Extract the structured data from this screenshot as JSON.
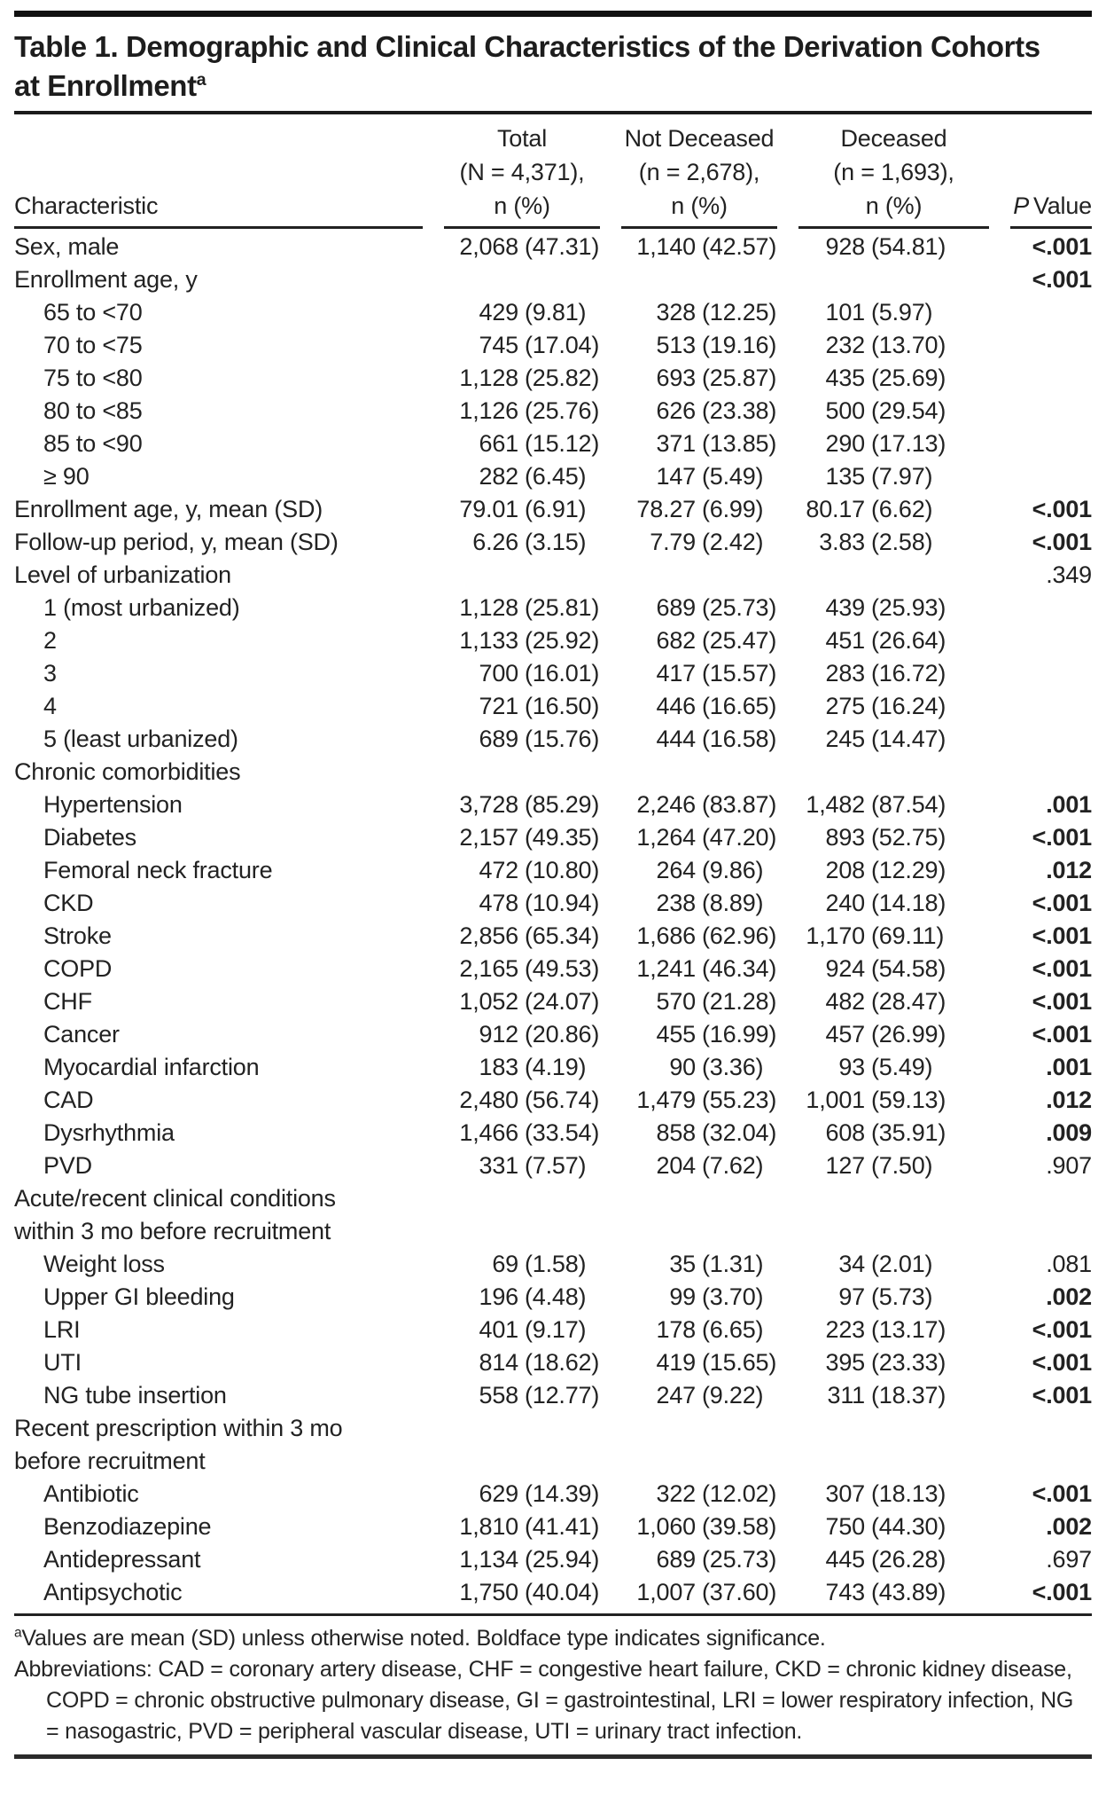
{
  "table": {
    "title_line1": "Table 1. Demographic and Clinical Characteristics of the Derivation Cohorts",
    "title_line2": "at Enrollment",
    "title_sup": "a",
    "header": {
      "characteristic": "Characteristic",
      "columns": [
        {
          "line1": "Total",
          "line2": "(N = 4,371),",
          "line3": "n (%)"
        },
        {
          "line1": "Not Deceased",
          "line2": "(n = 2,678),",
          "line3": "n (%)"
        },
        {
          "line1": "Deceased",
          "line2": "(n = 1,693),",
          "line3": "n (%)"
        }
      ],
      "p_italic": "P",
      "p_rest": "Value"
    },
    "rows": [
      {
        "label": "Sex, male",
        "total": "2,068 (47.31)",
        "nd": "1,140 (42.57)",
        "d": "928 (54.81)",
        "p": "<.001",
        "pb": true
      },
      {
        "label": "Enrollment age, y",
        "p": "<.001",
        "pb": true
      },
      {
        "label": "65 to <70",
        "ind": true,
        "total": "429 (9.81)",
        "nd": "328 (12.25)",
        "d": "101 (5.97)"
      },
      {
        "label": "70 to <75",
        "ind": true,
        "total": "745 (17.04)",
        "nd": "513 (19.16)",
        "d": "232 (13.70)"
      },
      {
        "label": "75 to <80",
        "ind": true,
        "total": "1,128 (25.82)",
        "nd": "693 (25.87)",
        "d": "435 (25.69)"
      },
      {
        "label": "80 to <85",
        "ind": true,
        "total": "1,126 (25.76)",
        "nd": "626 (23.38)",
        "d": "500 (29.54)"
      },
      {
        "label": "85 to <90",
        "ind": true,
        "total": "661 (15.12)",
        "nd": "371 (13.85)",
        "d": "290 (17.13)"
      },
      {
        "label": "≥ 90",
        "ind": true,
        "total": "282 (6.45)",
        "nd": "147 (5.49)",
        "d": "135 (7.97)"
      },
      {
        "label": "Enrollment age, y, mean (SD)",
        "total": "79.01 (6.91)",
        "nd": "78.27 (6.99)",
        "d": "80.17 (6.62)",
        "p": "<.001",
        "pb": true
      },
      {
        "label": "Follow-up period, y, mean (SD)",
        "total": "6.26 (3.15)",
        "nd": "7.79 (2.42)",
        "d": "3.83 (2.58)",
        "p": "<.001",
        "pb": true
      },
      {
        "label": "Level of urbanization",
        "p": ".349",
        "pb": false
      },
      {
        "label": "1 (most urbanized)",
        "ind": true,
        "total": "1,128 (25.81)",
        "nd": "689 (25.73)",
        "d": "439 (25.93)"
      },
      {
        "label": "2",
        "ind": true,
        "total": "1,133 (25.92)",
        "nd": "682 (25.47)",
        "d": "451 (26.64)"
      },
      {
        "label": "3",
        "ind": true,
        "total": "700 (16.01)",
        "nd": "417 (15.57)",
        "d": "283 (16.72)"
      },
      {
        "label": "4",
        "ind": true,
        "total": "721 (16.50)",
        "nd": "446 (16.65)",
        "d": "275 (16.24)"
      },
      {
        "label": "5 (least urbanized)",
        "ind": true,
        "total": "689 (15.76)",
        "nd": "444 (16.58)",
        "d": "245 (14.47)"
      },
      {
        "label": "Chronic comorbidities"
      },
      {
        "label": "Hypertension",
        "ind": true,
        "total": "3,728 (85.29)",
        "nd": "2,246 (83.87)",
        "d": "1,482 (87.54)",
        "p": ".001",
        "pb": true
      },
      {
        "label": "Diabetes",
        "ind": true,
        "total": "2,157 (49.35)",
        "nd": "1,264 (47.20)",
        "d": "893 (52.75)",
        "p": "<.001",
        "pb": true
      },
      {
        "label": "Femoral neck fracture",
        "ind": true,
        "total": "472 (10.80)",
        "nd": "264 (9.86)",
        "d": "208 (12.29)",
        "p": ".012",
        "pb": true
      },
      {
        "label": "CKD",
        "ind": true,
        "total": "478 (10.94)",
        "nd": "238 (8.89)",
        "d": "240 (14.18)",
        "p": "<.001",
        "pb": true
      },
      {
        "label": "Stroke",
        "ind": true,
        "total": "2,856 (65.34)",
        "nd": "1,686 (62.96)",
        "d": "1,170 (69.11)",
        "p": "<.001",
        "pb": true
      },
      {
        "label": "COPD",
        "ind": true,
        "total": "2,165 (49.53)",
        "nd": "1,241 (46.34)",
        "d": "924 (54.58)",
        "p": "<.001",
        "pb": true
      },
      {
        "label": "CHF",
        "ind": true,
        "total": "1,052 (24.07)",
        "nd": "570 (21.28)",
        "d": "482 (28.47)",
        "p": "<.001",
        "pb": true
      },
      {
        "label": "Cancer",
        "ind": true,
        "total": "912 (20.86)",
        "nd": "455 (16.99)",
        "d": "457 (26.99)",
        "p": "<.001",
        "pb": true
      },
      {
        "label": "Myocardial infarction",
        "ind": true,
        "total": "183 (4.19)",
        "nd": "90 (3.36)",
        "d": "93 (5.49)",
        "p": ".001",
        "pb": true
      },
      {
        "label": "CAD",
        "ind": true,
        "total": "2,480 (56.74)",
        "nd": "1,479 (55.23)",
        "d": "1,001 (59.13)",
        "p": ".012",
        "pb": true
      },
      {
        "label": "Dysrhythmia",
        "ind": true,
        "total": "1,466 (33.54)",
        "nd": "858 (32.04)",
        "d": "608 (35.91)",
        "p": ".009",
        "pb": true
      },
      {
        "label": "PVD",
        "ind": true,
        "total": "331 (7.57)",
        "nd": "204 (7.62)",
        "d": "127 (7.50)",
        "p": ".907",
        "pb": false
      },
      {
        "label": "Acute/recent clinical conditions",
        "label2": "within 3 mo before recruitment"
      },
      {
        "label": "Weight loss",
        "ind": true,
        "total": "69 (1.58)",
        "nd": "35 (1.31)",
        "d": "34 (2.01)",
        "p": ".081",
        "pb": false
      },
      {
        "label": "Upper GI bleeding",
        "ind": true,
        "total": "196 (4.48)",
        "nd": "99 (3.70)",
        "d": "97 (5.73)",
        "p": ".002",
        "pb": true
      },
      {
        "label": "LRI",
        "ind": true,
        "total": "401 (9.17)",
        "nd": "178 (6.65)",
        "d": "223 (13.17)",
        "p": "<.001",
        "pb": true
      },
      {
        "label": "UTI",
        "ind": true,
        "total": "814 (18.62)",
        "nd": "419 (15.65)",
        "d": "395 (23.33)",
        "p": "<.001",
        "pb": true
      },
      {
        "label": "NG tube insertion",
        "ind": true,
        "total": "558 (12.77)",
        "nd": "247 (9.22)",
        "d": "311 (18.37)",
        "p": "<.001",
        "pb": true
      },
      {
        "label": "Recent prescription within 3 mo",
        "label2": "before recruitment"
      },
      {
        "label": "Antibiotic",
        "ind": true,
        "total": "629 (14.39)",
        "nd": "322 (12.02)",
        "d": "307 (18.13)",
        "p": "<.001",
        "pb": true
      },
      {
        "label": "Benzodiazepine",
        "ind": true,
        "total": "1,810 (41.41)",
        "nd": "1,060 (39.58)",
        "d": "750 (44.30)",
        "p": ".002",
        "pb": true
      },
      {
        "label": "Antidepressant",
        "ind": true,
        "total": "1,134 (25.94)",
        "nd": "689 (25.73)",
        "d": "445 (26.28)",
        "p": ".697",
        "pb": false
      },
      {
        "label": "Antipsychotic",
        "ind": true,
        "total": "1,750 (40.04)",
        "nd": "1,007 (37.60)",
        "d": "743 (43.89)",
        "p": "<.001",
        "pb": true
      }
    ],
    "footnotes": {
      "a_sup": "a",
      "a_text": "Values are mean (SD) unless otherwise noted. Boldface type indicates significance.",
      "abbreviations": "Abbreviations: CAD = coronary artery disease, CHF = congestive heart failure, CKD = chronic kidney disease, COPD = chronic obstructive pulmonary disease, GI = gastrointestinal, LRI = lower respiratory infection, NG = nasogastric, PVD = peripheral vascular disease, UTI = urinary tract infection."
    },
    "colors": {
      "text": "#222222",
      "rule": "#111111"
    }
  }
}
